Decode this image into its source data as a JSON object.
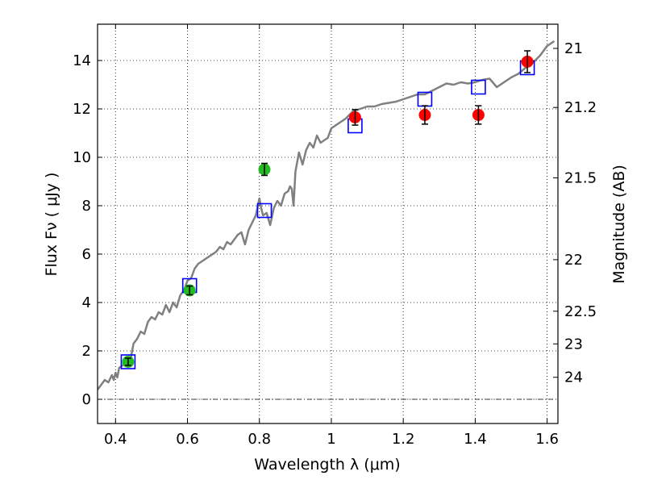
{
  "chart_data": {
    "type": "scatter",
    "xlabel": "Wavelength  λ (μm)",
    "ylabel": "Flux  Fν  ( μJy )",
    "y2label": "Magnitude (AB)",
    "xlim": [
      0.35,
      1.63
    ],
    "ylim": [
      -1,
      15.5
    ],
    "grid": true,
    "x_ticks": [
      0.4,
      0.6,
      0.8,
      1,
      1.2,
      1.4,
      1.6
    ],
    "x_tick_labels": [
      "0.4",
      "0.6",
      "0.8",
      "1",
      "1.2",
      "1.4",
      "1.6"
    ],
    "y_ticks": [
      0,
      2,
      4,
      6,
      8,
      10,
      12,
      14
    ],
    "y_tick_labels": [
      "0",
      "2",
      "4",
      "6",
      "8",
      "10",
      "12",
      "14"
    ],
    "mag_ticks": [
      {
        "label": "21",
        "flux": 14.5
      },
      {
        "label": "21.2",
        "flux": 12.06
      },
      {
        "label": "21.5",
        "flux": 9.15
      },
      {
        "label": "22",
        "flux": 5.77
      },
      {
        "label": "22.5",
        "flux": 3.64
      },
      {
        "label": "23",
        "flux": 2.29
      },
      {
        "label": "24",
        "flux": 0.91
      }
    ],
    "zero_line": 0,
    "colors": {
      "model": "#808080",
      "green": "#22bb22",
      "red": "#ff0000",
      "square": "#0000ff",
      "errorbar": "#000000"
    },
    "model_curve": {
      "x": [
        0.35,
        0.36,
        0.37,
        0.38,
        0.39,
        0.395,
        0.4,
        0.405,
        0.41,
        0.42,
        0.43,
        0.44,
        0.45,
        0.46,
        0.47,
        0.48,
        0.49,
        0.5,
        0.51,
        0.52,
        0.53,
        0.54,
        0.55,
        0.56,
        0.57,
        0.58,
        0.59,
        0.6,
        0.61,
        0.62,
        0.63,
        0.64,
        0.65,
        0.66,
        0.67,
        0.68,
        0.69,
        0.7,
        0.71,
        0.72,
        0.73,
        0.74,
        0.75,
        0.76,
        0.77,
        0.78,
        0.79,
        0.8,
        0.805,
        0.81,
        0.82,
        0.83,
        0.84,
        0.85,
        0.86,
        0.87,
        0.88,
        0.885,
        0.89,
        0.895,
        0.9,
        0.91,
        0.92,
        0.93,
        0.94,
        0.95,
        0.96,
        0.97,
        0.98,
        0.99,
        1.0,
        1.02,
        1.04,
        1.06,
        1.08,
        1.1,
        1.12,
        1.14,
        1.16,
        1.18,
        1.2,
        1.22,
        1.24,
        1.26,
        1.28,
        1.3,
        1.32,
        1.34,
        1.36,
        1.38,
        1.4,
        1.42,
        1.44,
        1.46,
        1.48,
        1.5,
        1.52,
        1.54,
        1.56,
        1.58,
        1.6,
        1.62
      ],
      "y": [
        0.4,
        0.6,
        0.8,
        0.7,
        1.0,
        0.8,
        1.1,
        0.9,
        1.3,
        1.4,
        1.6,
        1.5,
        2.3,
        2.5,
        2.8,
        2.7,
        3.2,
        3.4,
        3.3,
        3.6,
        3.5,
        3.9,
        3.6,
        4.0,
        3.8,
        4.3,
        4.5,
        4.9,
        5.0,
        5.4,
        5.6,
        5.7,
        5.8,
        5.9,
        6.0,
        6.1,
        6.3,
        6.2,
        6.5,
        6.4,
        6.6,
        6.8,
        6.9,
        6.4,
        7.0,
        7.3,
        7.6,
        8.3,
        7.9,
        7.6,
        7.7,
        7.2,
        7.9,
        8.2,
        8.0,
        8.5,
        8.6,
        8.8,
        8.7,
        8.0,
        9.4,
        10.2,
        9.7,
        10.3,
        10.6,
        10.4,
        10.9,
        10.6,
        10.7,
        10.8,
        11.2,
        11.4,
        11.6,
        11.9,
        12.0,
        12.1,
        12.1,
        12.2,
        12.25,
        12.3,
        12.4,
        12.5,
        12.6,
        12.6,
        12.75,
        12.9,
        13.05,
        13.0,
        13.1,
        13.05,
        13.1,
        13.2,
        13.25,
        12.9,
        13.1,
        13.3,
        13.45,
        13.7,
        13.9,
        14.2,
        14.6,
        14.8
      ]
    },
    "green_points": [
      {
        "x": 0.435,
        "y": 1.55,
        "err": 0.15
      },
      {
        "x": 0.606,
        "y": 4.5,
        "err": 0.18
      },
      {
        "x": 0.814,
        "y": 9.5,
        "err": 0.25
      }
    ],
    "red_points": [
      {
        "x": 1.066,
        "y": 11.65,
        "err": 0.32
      },
      {
        "x": 1.26,
        "y": 11.75,
        "err": 0.38
      },
      {
        "x": 1.409,
        "y": 11.75,
        "err": 0.38
      },
      {
        "x": 1.545,
        "y": 13.95,
        "err": 0.45
      }
    ],
    "model_squares": [
      {
        "x": 0.435,
        "y": 1.55
      },
      {
        "x": 0.606,
        "y": 4.7
      },
      {
        "x": 0.814,
        "y": 7.8
      },
      {
        "x": 1.066,
        "y": 11.3
      },
      {
        "x": 1.26,
        "y": 12.4
      },
      {
        "x": 1.409,
        "y": 12.9
      },
      {
        "x": 1.545,
        "y": 13.7
      }
    ]
  }
}
